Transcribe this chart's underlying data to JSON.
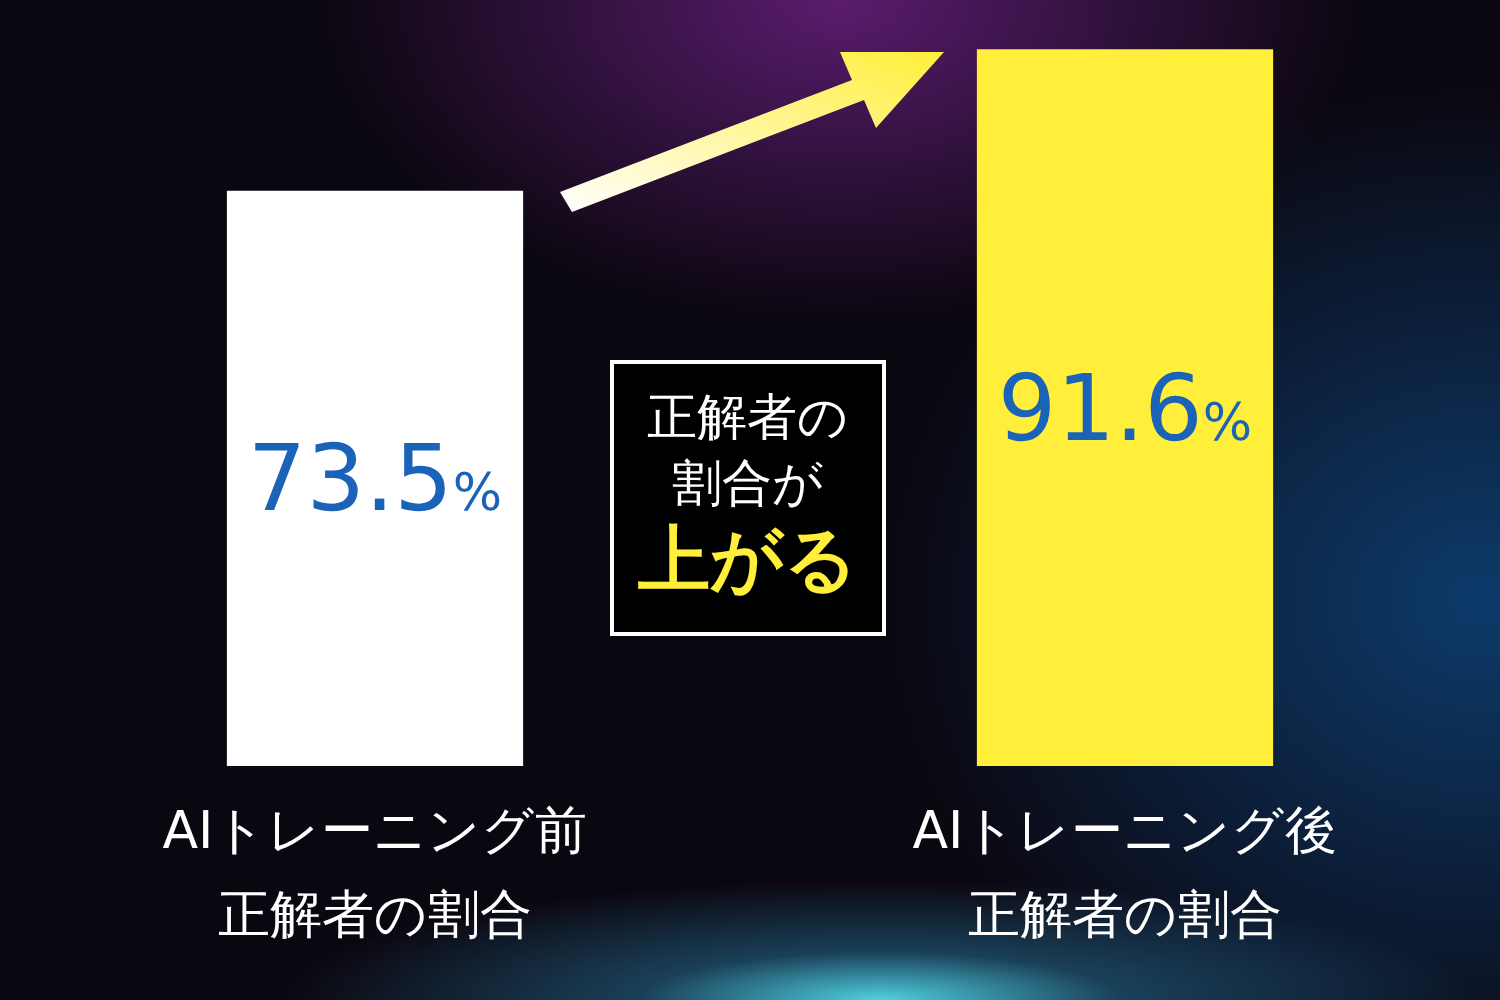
{
  "chart_data": {
    "type": "bar",
    "categories": [
      "AIトレーニング前正解者の割合",
      "AIトレーニング後正解者の割合"
    ],
    "values": [
      73.5,
      91.6
    ],
    "colors": [
      "#ffffff",
      "#ffee3a"
    ],
    "value_labels": [
      "73.5%",
      "91.6%"
    ],
    "ylim": [
      0,
      92
    ],
    "tick_labels": "x",
    "legend": false,
    "annotations": [
      "正解者の割合が",
      "上がる"
    ]
  }
}
